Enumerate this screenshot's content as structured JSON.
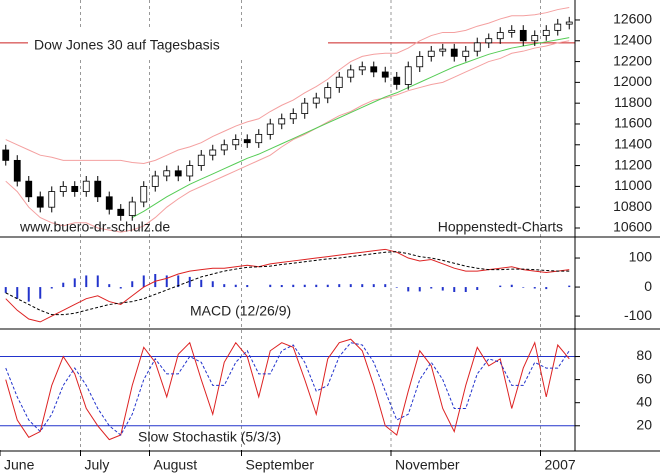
{
  "chart_data": [
    {
      "type": "candlestick",
      "title": "Dow Jones 30 auf Tagesbasis",
      "source_left": "www.buero-dr-schulz.de",
      "source_right": "Hoppenstedt-Charts",
      "open": [
        11350,
        11250,
        11050,
        10900,
        10800,
        10950,
        11000,
        10950,
        11050,
        10900,
        10780,
        10720,
        10850,
        11000,
        11100,
        11150,
        11100,
        11200,
        11300,
        11350,
        11400,
        11450,
        11420,
        11500,
        11600,
        11650,
        11700,
        11800,
        11850,
        11950,
        12050,
        12120,
        12150,
        12100,
        12050,
        11980,
        12150,
        12250,
        12300,
        12320,
        12250,
        12300,
        12380,
        12420,
        12480,
        12500,
        12400,
        12450,
        12500,
        12560
      ],
      "high": [
        11400,
        11300,
        11100,
        10950,
        11000,
        11050,
        11050,
        11100,
        11100,
        10950,
        10830,
        10900,
        11050,
        11150,
        11200,
        11200,
        11250,
        11350,
        11400,
        11450,
        11500,
        11500,
        11550,
        11650,
        11700,
        11750,
        11850,
        11900,
        12000,
        12100,
        12170,
        12200,
        12200,
        12150,
        12100,
        12200,
        12300,
        12350,
        12370,
        12370,
        12350,
        12430,
        12470,
        12530,
        12550,
        12550,
        12500,
        12550,
        12610,
        12630
      ],
      "low": [
        11200,
        11000,
        10850,
        10750,
        10750,
        10900,
        10900,
        10900,
        10850,
        10730,
        10670,
        10670,
        10800,
        10950,
        11050,
        11050,
        11050,
        11150,
        11250,
        11300,
        11350,
        11370,
        11370,
        11450,
        11550,
        11600,
        11650,
        11750,
        11800,
        11900,
        12000,
        12070,
        12050,
        12000,
        11930,
        11930,
        12100,
        12200,
        12250,
        12200,
        12200,
        12250,
        12330,
        12370,
        12430,
        12350,
        12350,
        12400,
        12450,
        12510
      ],
      "close": [
        11250,
        11050,
        10900,
        10800,
        10950,
        11000,
        10950,
        11050,
        10900,
        10780,
        10720,
        10850,
        11000,
        11100,
        11150,
        11100,
        11200,
        11300,
        11350,
        11400,
        11450,
        11420,
        11500,
        11600,
        11650,
        11700,
        11800,
        11850,
        11950,
        12050,
        12120,
        12150,
        12100,
        12050,
        11980,
        12150,
        12250,
        12300,
        12320,
        12250,
        12300,
        12380,
        12420,
        12480,
        12500,
        12400,
        12450,
        12500,
        12560,
        12580
      ],
      "series": [
        {
          "color": "#f4a0a0",
          "values": [
            11450,
            11400,
            11350,
            11300,
            11280,
            11250,
            11250,
            11250,
            11250,
            11250,
            11250,
            11230,
            11220,
            11250,
            11300,
            11350,
            11380,
            11420,
            11480,
            11530,
            11580,
            11620,
            11650,
            11720,
            11780,
            11830,
            11900,
            11960,
            12030,
            12120,
            12200,
            12250,
            12270,
            12280,
            12280,
            12330,
            12400,
            12450,
            12480,
            12480,
            12500,
            12540,
            12570,
            12610,
            12640,
            12640,
            12650,
            12670,
            12700,
            12720
          ]
        },
        {
          "color": "#f4a0a0",
          "values": [
            11050,
            10950,
            10800,
            10700,
            10650,
            10620,
            10650,
            10650,
            10600,
            10580,
            10560,
            10580,
            10620,
            10700,
            10800,
            10880,
            10950,
            11000,
            11050,
            11100,
            11150,
            11200,
            11250,
            11300,
            11380,
            11450,
            11500,
            11560,
            11620,
            11680,
            11720,
            11780,
            11830,
            11850,
            11880,
            11920,
            11950,
            11980,
            12000,
            12050,
            12100,
            12150,
            12200,
            12230,
            12280,
            12300,
            12330,
            12350,
            12380,
            12400
          ]
        },
        {
          "color": "#55cc55",
          "values": [
            null,
            null,
            null,
            null,
            null,
            null,
            null,
            null,
            null,
            null,
            null,
            10700,
            10760,
            10830,
            10900,
            10960,
            11020,
            11070,
            11120,
            11170,
            11220,
            11270,
            11310,
            11360,
            11410,
            11460,
            11510,
            11560,
            11610,
            11660,
            11710,
            11760,
            11810,
            11860,
            11900,
            11950,
            12000,
            12050,
            12100,
            12150,
            12190,
            12230,
            12270,
            12300,
            12330,
            12350,
            12370,
            12390,
            12410,
            12430
          ]
        }
      ],
      "hline": 12380,
      "hline_color": "#cc2222",
      "ylim": [
        10523,
        12792
      ],
      "yticks": [
        10600,
        10800,
        11000,
        11200,
        11400,
        11600,
        11800,
        12000,
        12200,
        12400,
        12600
      ]
    },
    {
      "type": "line",
      "title": "MACD (12/26/9)",
      "series": [
        {
          "color": "#dd2222",
          "values": [
            -40,
            -80,
            -110,
            -120,
            -100,
            -80,
            -60,
            -40,
            -30,
            -50,
            -60,
            -30,
            0,
            20,
            30,
            45,
            55,
            60,
            65,
            65,
            70,
            75,
            70,
            80,
            85,
            90,
            95,
            100,
            105,
            110,
            115,
            120,
            125,
            130,
            120,
            100,
            90,
            95,
            80,
            65,
            55,
            55,
            60,
            65,
            70,
            60,
            55,
            50,
            55,
            60
          ]
        },
        {
          "color": "#000000",
          "dash": true,
          "values": [
            -20,
            -40,
            -60,
            -80,
            -95,
            -95,
            -90,
            -80,
            -70,
            -60,
            -55,
            -50,
            -40,
            -25,
            -10,
            5,
            20,
            35,
            45,
            55,
            62,
            68,
            70,
            72,
            78,
            82,
            87,
            92,
            97,
            100,
            105,
            110,
            115,
            120,
            122,
            115,
            105,
            100,
            92,
            82,
            72,
            65,
            60,
            60,
            62,
            62,
            60,
            57,
            55,
            55
          ]
        }
      ],
      "histogram": [
        -20,
        -40,
        -50,
        -40,
        -5,
        15,
        30,
        40,
        40,
        10,
        -5,
        20,
        40,
        45,
        40,
        40,
        35,
        25,
        20,
        10,
        8,
        7,
        0,
        8,
        7,
        8,
        8,
        8,
        8,
        10,
        10,
        10,
        10,
        10,
        -2,
        -15,
        -15,
        -5,
        -12,
        -17,
        -17,
        -10,
        0,
        5,
        8,
        -2,
        -5,
        -7,
        0,
        5
      ],
      "histogram_color": "#2233cc",
      "ylim": [
        -141,
        169
      ],
      "yticks": [
        -100,
        0,
        100
      ]
    },
    {
      "type": "line",
      "title": "Slow Stochastik (5/3/3)",
      "categories": [
        "June",
        null,
        null,
        null,
        null,
        null,
        null,
        "July",
        null,
        null,
        null,
        null,
        null,
        "August",
        null,
        null,
        null,
        null,
        null,
        null,
        null,
        "September",
        null,
        null,
        null,
        null,
        null,
        null,
        null,
        null,
        null,
        null,
        null,
        null,
        "November",
        null,
        null,
        null,
        null,
        null,
        null,
        null,
        null,
        null,
        null,
        null,
        null,
        "2007",
        null,
        null
      ],
      "series": [
        {
          "color": "#dd2222",
          "values": [
            60,
            25,
            10,
            15,
            55,
            80,
            65,
            35,
            20,
            8,
            12,
            55,
            88,
            75,
            45,
            82,
            92,
            60,
            30,
            75,
            92,
            80,
            45,
            85,
            92,
            88,
            60,
            30,
            78,
            92,
            95,
            85,
            55,
            20,
            12,
            50,
            85,
            72,
            35,
            15,
            55,
            88,
            72,
            78,
            35,
            70,
            92,
            45,
            90,
            78
          ]
        },
        {
          "color": "#2233cc",
          "dash": true,
          "values": [
            70,
            45,
            25,
            15,
            30,
            55,
            70,
            55,
            35,
            20,
            12,
            30,
            60,
            78,
            65,
            65,
            80,
            75,
            55,
            55,
            75,
            85,
            65,
            65,
            85,
            90,
            75,
            50,
            55,
            80,
            92,
            90,
            75,
            50,
            25,
            30,
            60,
            75,
            60,
            35,
            35,
            65,
            78,
            75,
            55,
            55,
            75,
            70,
            70,
            85
          ]
        }
      ],
      "levels": [
        20,
        80
      ],
      "level_color": "#2233cc",
      "ylim": [
        -1,
        103
      ],
      "yticks": [
        20,
        40,
        60,
        80
      ]
    }
  ]
}
